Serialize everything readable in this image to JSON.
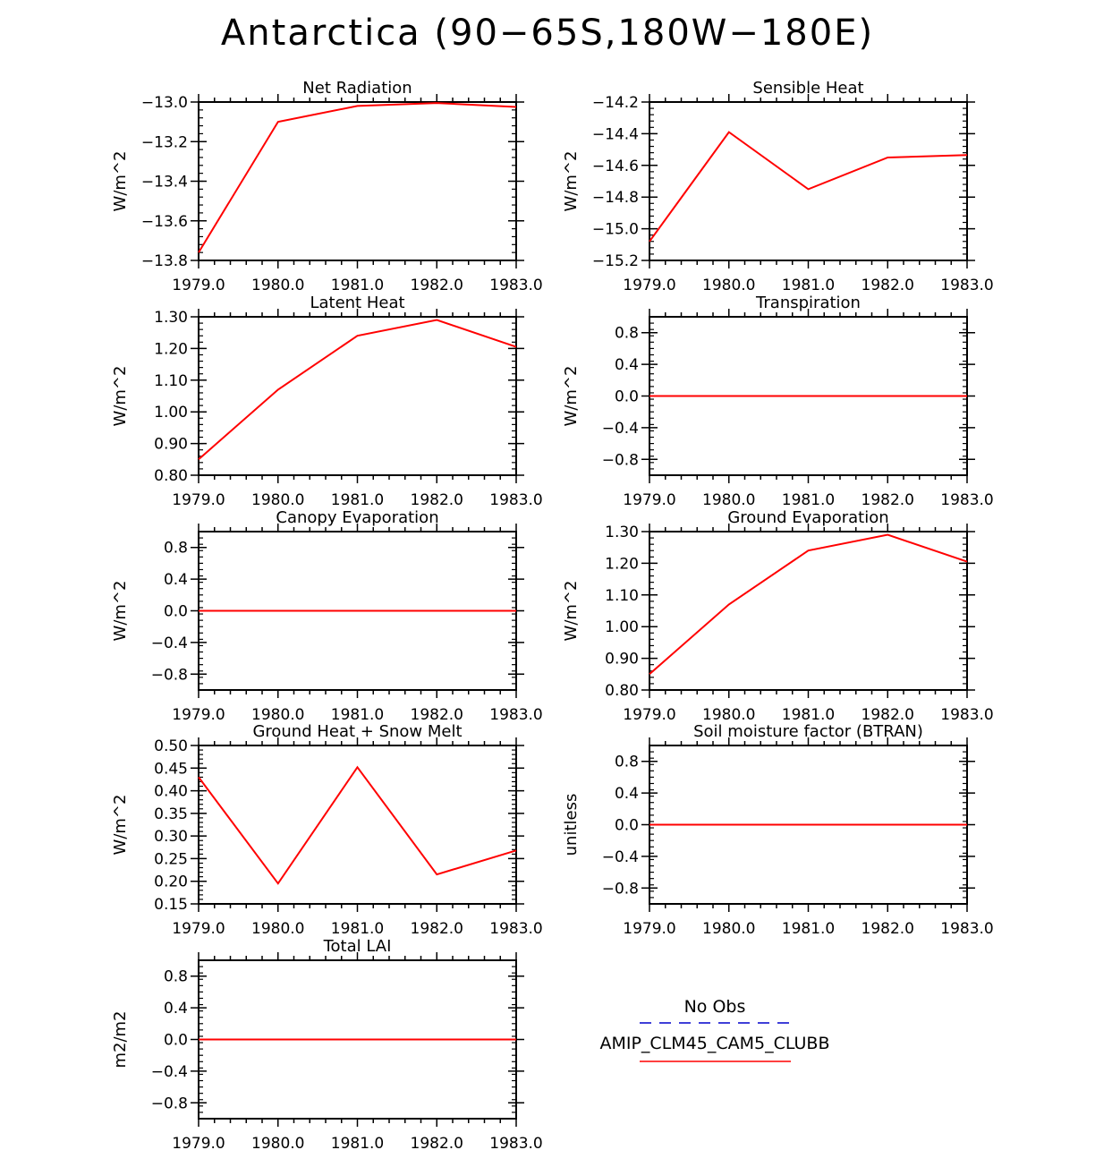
{
  "figure": {
    "title": "Antarctica (90−65S,180W−180E)"
  },
  "colors": {
    "series": "#ff0000",
    "obs": "#0000cc",
    "axes": "#000000"
  },
  "legend": {
    "entries": [
      {
        "label": "No Obs",
        "color": "#0000cc",
        "style": "dashed"
      },
      {
        "label": "AMIP_CLM45_CAM5_CLUBB",
        "color": "#ff0000",
        "style": "solid"
      }
    ]
  },
  "chart_data": [
    {
      "type": "line",
      "title": "Net Radiation",
      "ylabel": "W/m^2",
      "x": [
        1979.0,
        1980.0,
        1981.0,
        1982.0,
        1983.0
      ],
      "xticks": [
        "1979.0",
        "1980.0",
        "1981.0",
        "1982.0",
        "1983.0"
      ],
      "ylim": [
        -13.8,
        -13.0
      ],
      "yticks": [
        -13.0,
        -13.2,
        -13.4,
        -13.6,
        -13.8
      ],
      "ytick_labels": [
        "−13.0",
        "−13.2",
        "−13.4",
        "−13.6",
        "−13.8"
      ],
      "series": [
        {
          "values": [
            -13.76,
            -13.1,
            -13.02,
            -13.005,
            -13.025
          ]
        }
      ]
    },
    {
      "type": "line",
      "title": "Sensible Heat",
      "ylabel": "W/m^2",
      "x": [
        1979.0,
        1980.0,
        1981.0,
        1982.0,
        1983.0
      ],
      "xticks": [
        "1979.0",
        "1980.0",
        "1981.0",
        "1982.0",
        "1983.0"
      ],
      "ylim": [
        -15.2,
        -14.2
      ],
      "yticks": [
        -14.2,
        -14.4,
        -14.6,
        -14.8,
        -15.0,
        -15.2
      ],
      "ytick_labels": [
        "−14.2",
        "−14.4",
        "−14.6",
        "−14.8",
        "−15.0",
        "−15.2"
      ],
      "series": [
        {
          "values": [
            -15.08,
            -14.39,
            -14.75,
            -14.55,
            -14.535
          ]
        }
      ]
    },
    {
      "type": "line",
      "title": "Latent Heat",
      "ylabel": "W/m^2",
      "x": [
        1979.0,
        1980.0,
        1981.0,
        1982.0,
        1983.0
      ],
      "xticks": [
        "1979.0",
        "1980.0",
        "1981.0",
        "1982.0",
        "1983.0"
      ],
      "ylim": [
        0.8,
        1.3
      ],
      "yticks": [
        1.3,
        1.2,
        1.1,
        1.0,
        0.9,
        0.8
      ],
      "ytick_labels": [
        "1.30",
        "1.20",
        "1.10",
        "1.00",
        "0.90",
        "0.80"
      ],
      "series": [
        {
          "values": [
            0.85,
            1.07,
            1.24,
            1.29,
            1.205
          ]
        }
      ]
    },
    {
      "type": "line",
      "title": "Transpiration",
      "ylabel": "W/m^2",
      "x": [
        1979.0,
        1980.0,
        1981.0,
        1982.0,
        1983.0
      ],
      "xticks": [
        "1979.0",
        "1980.0",
        "1981.0",
        "1982.0",
        "1983.0"
      ],
      "ylim": [
        -1.0,
        1.0
      ],
      "yticks": [
        0.8,
        0.4,
        0.0,
        -0.4,
        -0.8
      ],
      "ytick_labels": [
        "0.8",
        "0.4",
        "0.0",
        "−0.4",
        "−0.8"
      ],
      "series": [
        {
          "values": [
            0,
            0,
            0,
            0,
            0
          ]
        }
      ]
    },
    {
      "type": "line",
      "title": "Canopy Evaporation",
      "ylabel": "W/m^2",
      "x": [
        1979.0,
        1980.0,
        1981.0,
        1982.0,
        1983.0
      ],
      "xticks": [
        "1979.0",
        "1980.0",
        "1981.0",
        "1982.0",
        "1983.0"
      ],
      "ylim": [
        -1.0,
        1.0
      ],
      "yticks": [
        0.8,
        0.4,
        0.0,
        -0.4,
        -0.8
      ],
      "ytick_labels": [
        "0.8",
        "0.4",
        "0.0",
        "−0.4",
        "−0.8"
      ],
      "series": [
        {
          "values": [
            0,
            0,
            0,
            0,
            0
          ]
        }
      ]
    },
    {
      "type": "line",
      "title": "Ground Evaporation",
      "ylabel": "W/m^2",
      "x": [
        1979.0,
        1980.0,
        1981.0,
        1982.0,
        1983.0
      ],
      "xticks": [
        "1979.0",
        "1980.0",
        "1981.0",
        "1982.0",
        "1983.0"
      ],
      "ylim": [
        0.8,
        1.3
      ],
      "yticks": [
        1.3,
        1.2,
        1.1,
        1.0,
        0.9,
        0.8
      ],
      "ytick_labels": [
        "1.30",
        "1.20",
        "1.10",
        "1.00",
        "0.90",
        "0.80"
      ],
      "series": [
        {
          "values": [
            0.85,
            1.07,
            1.24,
            1.29,
            1.205
          ]
        }
      ]
    },
    {
      "type": "line",
      "title": "Ground Heat + Snow Melt",
      "ylabel": "W/m^2",
      "x": [
        1979.0,
        1980.0,
        1981.0,
        1982.0,
        1983.0
      ],
      "xticks": [
        "1979.0",
        "1980.0",
        "1981.0",
        "1982.0",
        "1983.0"
      ],
      "ylim": [
        0.15,
        0.5
      ],
      "yticks": [
        0.5,
        0.45,
        0.4,
        0.35,
        0.3,
        0.25,
        0.2,
        0.15
      ],
      "ytick_labels": [
        "0.50",
        "0.45",
        "0.40",
        "0.35",
        "0.30",
        "0.25",
        "0.20",
        "0.15"
      ],
      "series": [
        {
          "values": [
            0.43,
            0.195,
            0.452,
            0.215,
            0.268
          ]
        }
      ]
    },
    {
      "type": "line",
      "title": "Soil moisture factor (BTRAN)",
      "ylabel": "unitless",
      "x": [
        1979.0,
        1980.0,
        1981.0,
        1982.0,
        1983.0
      ],
      "xticks": [
        "1979.0",
        "1980.0",
        "1981.0",
        "1982.0",
        "1983.0"
      ],
      "ylim": [
        -1.0,
        1.0
      ],
      "yticks": [
        0.8,
        0.4,
        0.0,
        -0.4,
        -0.8
      ],
      "ytick_labels": [
        "0.8",
        "0.4",
        "0.0",
        "−0.4",
        "−0.8"
      ],
      "series": [
        {
          "values": [
            0,
            0,
            0,
            0,
            0
          ]
        }
      ]
    },
    {
      "type": "line",
      "title": "Total LAI",
      "ylabel": "m2/m2",
      "x": [
        1979.0,
        1980.0,
        1981.0,
        1982.0,
        1983.0
      ],
      "xticks": [
        "1979.0",
        "1980.0",
        "1981.0",
        "1982.0",
        "1983.0"
      ],
      "ylim": [
        -1.0,
        1.0
      ],
      "yticks": [
        0.8,
        0.4,
        0.0,
        -0.4,
        -0.8
      ],
      "ytick_labels": [
        "0.8",
        "0.4",
        "0.0",
        "−0.4",
        "−0.8"
      ],
      "series": [
        {
          "values": [
            0,
            0,
            0,
            0,
            0
          ]
        }
      ]
    }
  ]
}
